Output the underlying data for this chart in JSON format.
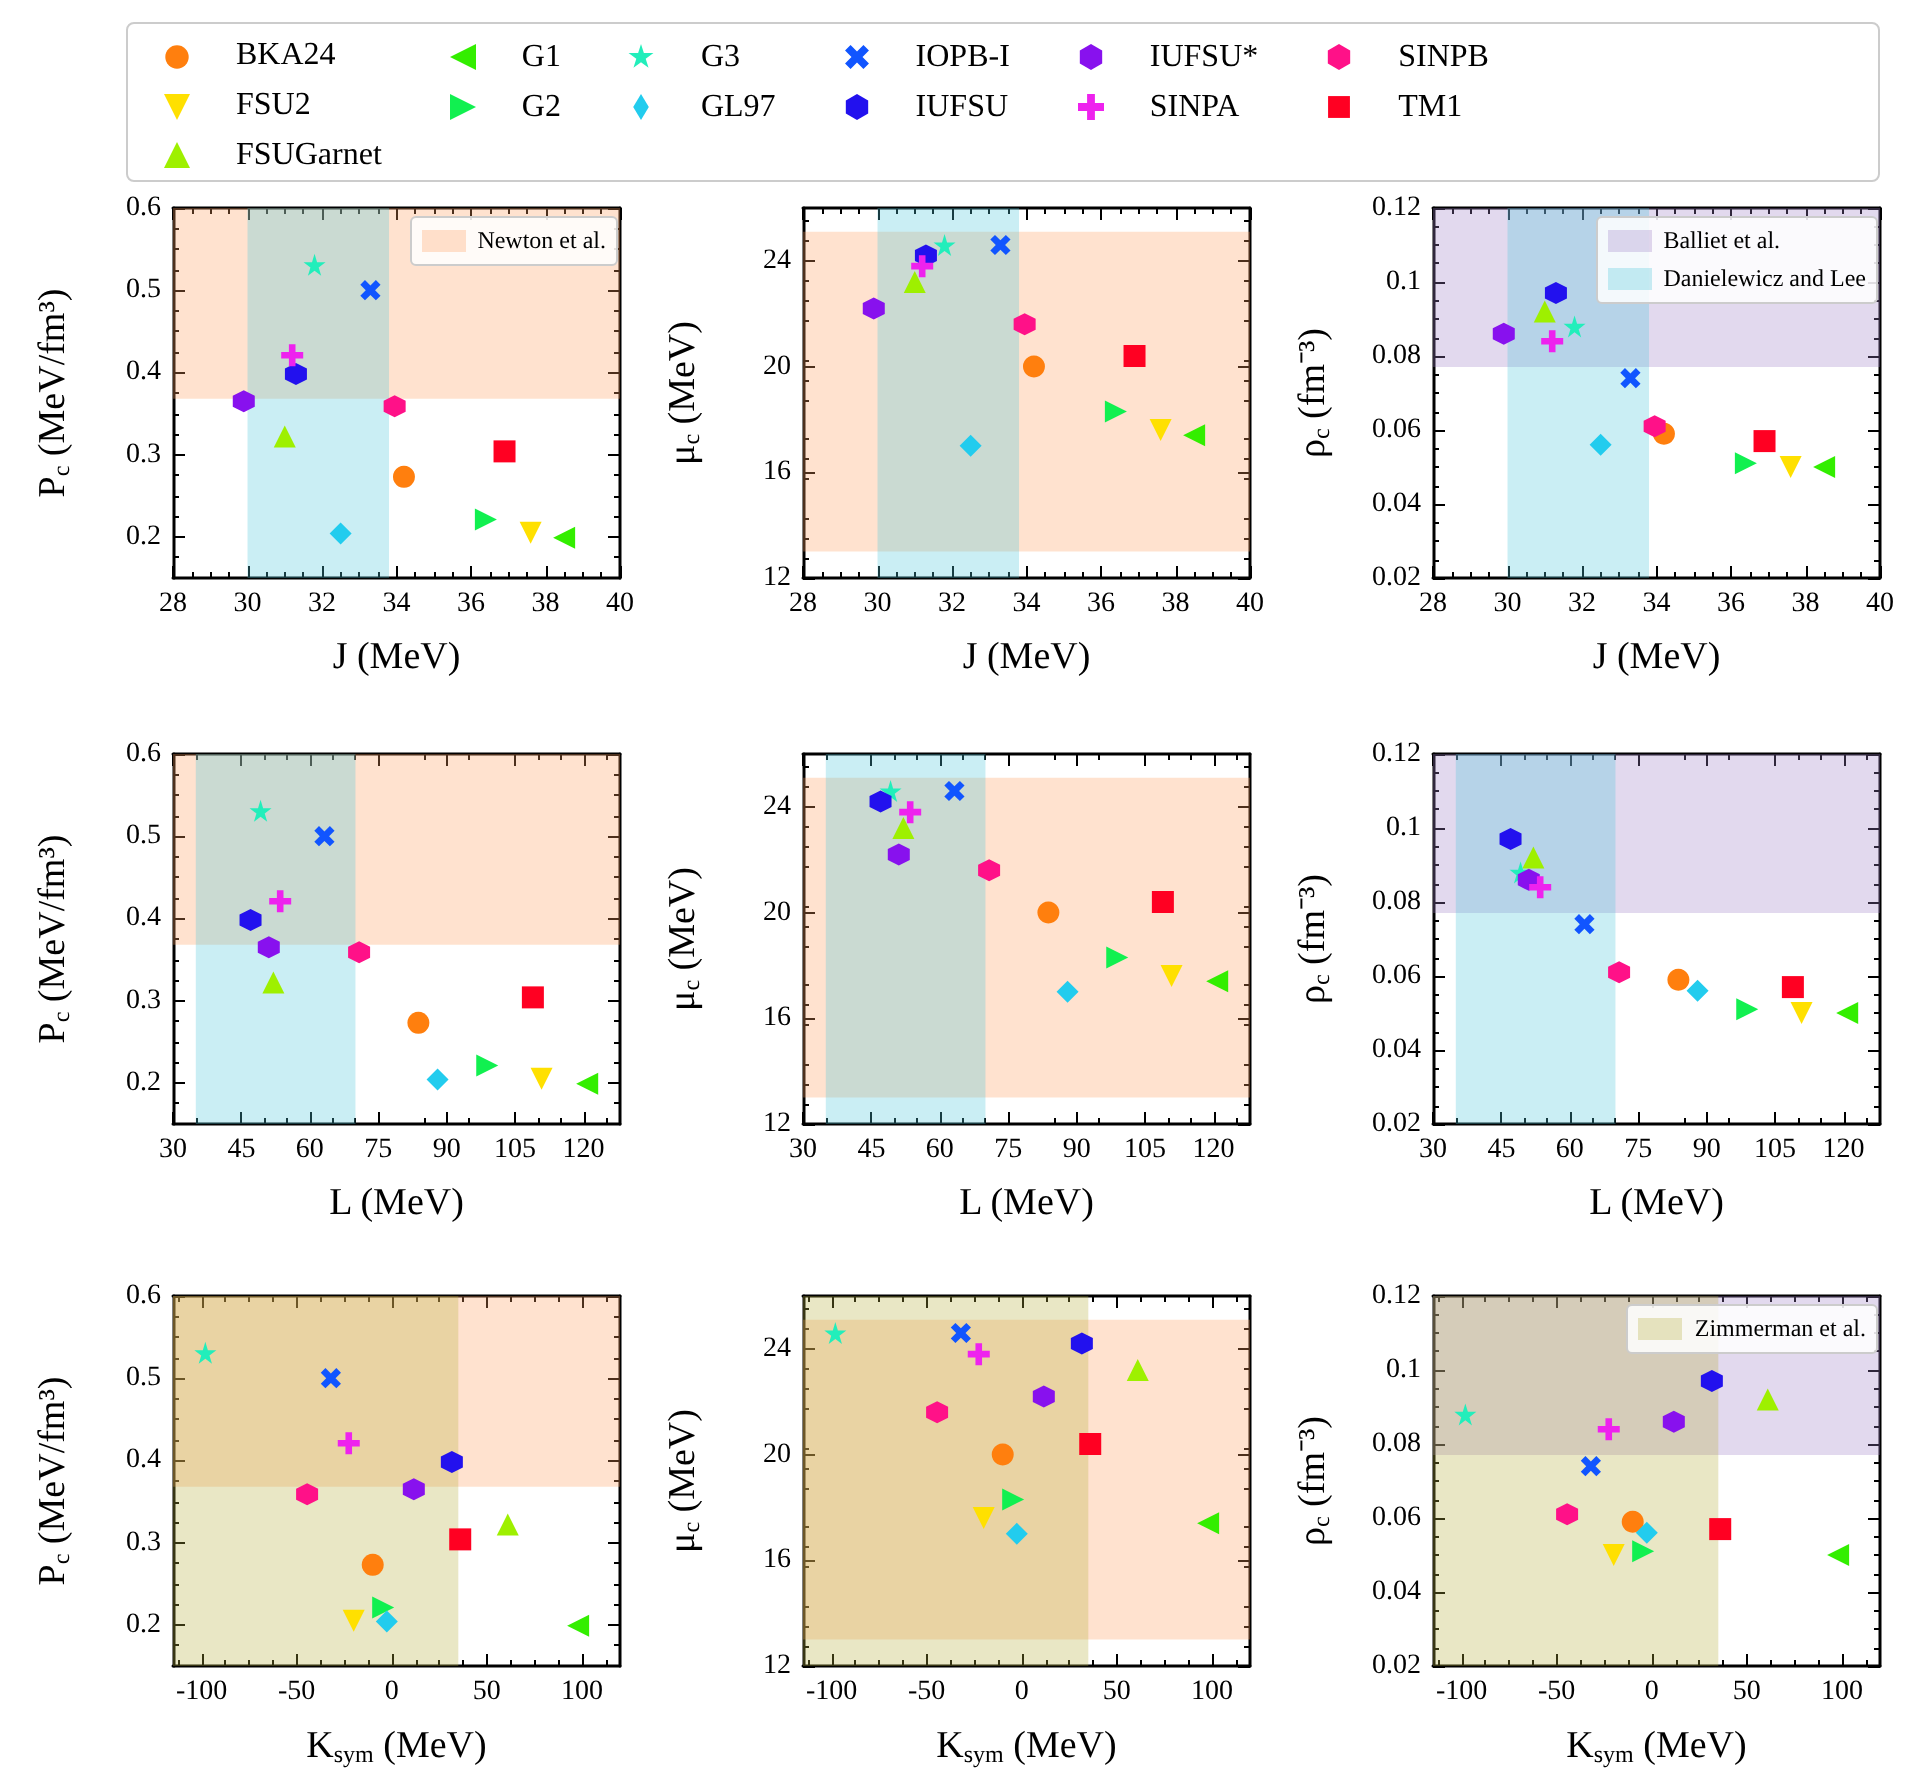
{
  "chart_data": [
    {
      "type": "scatter",
      "xlabel": "J (MeV)",
      "ylabel": "P$_{c}$ (MeV/fm³)",
      "xlim": [
        28,
        40
      ],
      "xticks": [
        28,
        30,
        32,
        34,
        36,
        38,
        40
      ],
      "ylim": [
        0.15,
        0.6
      ],
      "yticks": [
        0.2,
        0.3,
        0.4,
        0.5,
        0.6
      ],
      "legend": "top",
      "grid": false,
      "bands": [
        {
          "axis": "y",
          "from": 0.368,
          "to": 0.6,
          "label": "Newton et al.",
          "color": "#ffa060"
        },
        {
          "axis": "x",
          "from": 30,
          "to": 33.8,
          "color": "#4fc8dc"
        }
      ],
      "series": [
        {
          "name": "BKA24",
          "color": "#ff7f0e",
          "marker": "circle",
          "x": [
            34.2
          ],
          "values": [
            0.273
          ]
        },
        {
          "name": "FSU2",
          "color": "#ffe000",
          "marker": "triangle-down",
          "x": [
            37.6
          ],
          "values": [
            0.205
          ]
        },
        {
          "name": "FSUGarnet",
          "color": "#9ef000",
          "marker": "triangle",
          "x": [
            31.0
          ],
          "values": [
            0.322
          ]
        },
        {
          "name": "G1",
          "color": "#33ee00",
          "marker": "triangle-left",
          "x": [
            38.5
          ],
          "values": [
            0.199
          ]
        },
        {
          "name": "G2",
          "color": "#11f050",
          "marker": "triangle-right",
          "x": [
            36.4
          ],
          "values": [
            0.221
          ]
        },
        {
          "name": "G3",
          "color": "#22eebb",
          "marker": "star",
          "x": [
            31.8
          ],
          "values": [
            0.531
          ]
        },
        {
          "name": "GL97",
          "color": "#22ccee",
          "marker": "diamond",
          "x": [
            32.5
          ],
          "values": [
            0.204
          ]
        },
        {
          "name": "IOPB-I",
          "color": "#1155ff",
          "marker": "cross",
          "x": [
            33.3
          ],
          "values": [
            0.5
          ]
        },
        {
          "name": "IUFSU",
          "color": "#2211ee",
          "x": [
            31.3
          ],
          "values": [
            0.398
          ]
        },
        {
          "name": "IUFSU*",
          "color": "#8811ee",
          "x": [
            29.9
          ],
          "values": [
            0.365
          ]
        },
        {
          "name": "SINPA",
          "color": "#ee22ee",
          "marker": "plus",
          "x": [
            31.2
          ],
          "values": [
            0.421
          ]
        },
        {
          "name": "SINPB",
          "color": "#ff1188",
          "x": [
            33.95
          ],
          "values": [
            0.359
          ]
        },
        {
          "name": "TM1",
          "color": "#ff0022",
          "marker": "square",
          "x": [
            36.9
          ],
          "values": [
            0.304
          ]
        }
      ]
    },
    {
      "type": "scatter",
      "xlabel": "J (MeV)",
      "ylabel": "μ$_{c}$ (MeV)",
      "xlim": [
        28,
        40
      ],
      "xticks": [
        28,
        30,
        32,
        34,
        36,
        38,
        40
      ],
      "ylim": [
        12,
        26
      ],
      "yticks": [
        12,
        16,
        20,
        24
      ],
      "grid": false,
      "bands": [
        {
          "axis": "y",
          "from": 13,
          "to": 25.1,
          "color": "#ffa060"
        },
        {
          "axis": "x",
          "from": 30,
          "to": 33.8,
          "color": "#4fc8dc"
        }
      ],
      "series": [
        {
          "color": "#ff7f0e",
          "marker": "circle",
          "x": [
            34.2
          ],
          "values": [
            20.0
          ]
        },
        {
          "color": "#ffe000",
          "marker": "triangle-down",
          "x": [
            37.6
          ],
          "values": [
            17.6
          ]
        },
        {
          "color": "#9ef000",
          "marker": "triangle",
          "x": [
            31.0
          ],
          "values": [
            23.2
          ]
        },
        {
          "color": "#33ee00",
          "marker": "triangle-left",
          "x": [
            38.5
          ],
          "values": [
            17.4
          ]
        },
        {
          "color": "#11f050",
          "marker": "triangle-right",
          "x": [
            36.4
          ],
          "values": [
            18.3
          ]
        },
        {
          "color": "#22eebb",
          "marker": "star",
          "x": [
            31.8
          ],
          "values": [
            24.6
          ]
        },
        {
          "color": "#22ccee",
          "marker": "diamond",
          "x": [
            32.5
          ],
          "values": [
            17.0
          ]
        },
        {
          "color": "#1155ff",
          "marker": "cross",
          "x": [
            33.3
          ],
          "values": [
            24.6
          ]
        },
        {
          "color": "#2211ee",
          "x": [
            31.3
          ],
          "values": [
            24.2
          ]
        },
        {
          "color": "#8811ee",
          "x": [
            29.9
          ],
          "values": [
            22.2
          ]
        },
        {
          "color": "#ee22ee",
          "marker": "plus",
          "x": [
            31.2
          ],
          "values": [
            23.8
          ]
        },
        {
          "color": "#ff1188",
          "x": [
            33.95
          ],
          "values": [
            21.6
          ]
        },
        {
          "color": "#ff0022",
          "marker": "square",
          "x": [
            36.9
          ],
          "values": [
            20.4
          ]
        }
      ]
    },
    {
      "type": "scatter",
      "xlabel": "J (MeV)",
      "ylabel": "ρ$_{c}$ (fm⁻³)",
      "xlim": [
        28,
        40
      ],
      "xticks": [
        28,
        30,
        32,
        34,
        36,
        38,
        40
      ],
      "ylim": [
        0.02,
        0.12
      ],
      "yticks": [
        0.02,
        0.04,
        0.06,
        0.08,
        0.1,
        0.12
      ],
      "legend": "top right",
      "grid": false,
      "bands": [
        {
          "axis": "y",
          "from": 0.077,
          "to": 0.12,
          "label": "Balliet et al.",
          "color": "#9e80c8"
        },
        {
          "axis": "x",
          "from": 30,
          "to": 33.8,
          "label": "Danielewicz and Lee",
          "color": "#4fc8dc"
        }
      ],
      "series": [
        {
          "color": "#ff7f0e",
          "marker": "circle",
          "x": [
            34.2
          ],
          "values": [
            0.059
          ]
        },
        {
          "color": "#ffe000",
          "marker": "triangle-down",
          "x": [
            37.6
          ],
          "values": [
            0.05
          ]
        },
        {
          "color": "#9ef000",
          "marker": "triangle",
          "x": [
            31.0
          ],
          "values": [
            0.092
          ]
        },
        {
          "color": "#33ee00",
          "marker": "triangle-left",
          "x": [
            38.5
          ],
          "values": [
            0.05
          ]
        },
        {
          "color": "#11f050",
          "marker": "triangle-right",
          "x": [
            36.4
          ],
          "values": [
            0.051
          ]
        },
        {
          "color": "#22eebb",
          "marker": "star",
          "x": [
            31.8
          ],
          "values": [
            0.088
          ]
        },
        {
          "color": "#22ccee",
          "marker": "diamond",
          "x": [
            32.5
          ],
          "values": [
            0.056
          ]
        },
        {
          "color": "#1155ff",
          "marker": "cross",
          "x": [
            33.3
          ],
          "values": [
            0.074
          ]
        },
        {
          "color": "#2211ee",
          "x": [
            31.3
          ],
          "values": [
            0.097
          ]
        },
        {
          "color": "#8811ee",
          "x": [
            29.9
          ],
          "values": [
            0.086
          ]
        },
        {
          "color": "#ee22ee",
          "marker": "plus",
          "x": [
            31.2
          ],
          "values": [
            0.084
          ]
        },
        {
          "color": "#ff1188",
          "x": [
            33.95
          ],
          "values": [
            0.061
          ]
        },
        {
          "color": "#ff0022",
          "marker": "square",
          "x": [
            36.9
          ],
          "values": [
            0.057
          ]
        }
      ]
    },
    {
      "type": "scatter",
      "xlabel": "L (MeV)",
      "ylabel": "P$_{c}$ (MeV/fm³)",
      "xlim": [
        30,
        128
      ],
      "xticks": [
        30,
        45,
        60,
        75,
        90,
        105,
        120
      ],
      "ylim": [
        0.15,
        0.6
      ],
      "yticks": [
        0.2,
        0.3,
        0.4,
        0.5,
        0.6
      ],
      "grid": false,
      "bands": [
        {
          "axis": "y",
          "from": 0.368,
          "to": 0.6,
          "color": "#ffa060"
        },
        {
          "axis": "x",
          "from": 35,
          "to": 70,
          "color": "#4fc8dc"
        }
      ],
      "series": [
        {
          "color": "#ff7f0e",
          "marker": "circle",
          "x": [
            83.8
          ],
          "values": [
            0.273
          ]
        },
        {
          "color": "#ffe000",
          "marker": "triangle-down",
          "x": [
            110.8
          ],
          "values": [
            0.205
          ]
        },
        {
          "color": "#9ef000",
          "marker": "triangle",
          "x": [
            52
          ],
          "values": [
            0.322
          ]
        },
        {
          "color": "#33ee00",
          "marker": "triangle-left",
          "x": [
            120.8
          ],
          "values": [
            0.199
          ]
        },
        {
          "color": "#11f050",
          "marker": "triangle-right",
          "x": [
            98.9
          ],
          "values": [
            0.221
          ]
        },
        {
          "color": "#22eebb",
          "marker": "star",
          "x": [
            49.2
          ],
          "values": [
            0.531
          ]
        },
        {
          "color": "#22ccee",
          "marker": "diamond",
          "x": [
            88
          ],
          "values": [
            0.204
          ]
        },
        {
          "color": "#1155ff",
          "marker": "cross",
          "x": [
            63.2
          ],
          "values": [
            0.5
          ]
        },
        {
          "color": "#2211ee",
          "x": [
            47
          ],
          "values": [
            0.398
          ]
        },
        {
          "color": "#8811ee",
          "x": [
            51
          ],
          "values": [
            0.365
          ]
        },
        {
          "color": "#ee22ee",
          "marker": "plus",
          "x": [
            53.5
          ],
          "values": [
            0.421
          ]
        },
        {
          "color": "#ff1188",
          "x": [
            70.8
          ],
          "values": [
            0.359
          ]
        },
        {
          "color": "#ff0022",
          "marker": "square",
          "x": [
            108.9
          ],
          "values": [
            0.304
          ]
        }
      ]
    },
    {
      "type": "scatter",
      "xlabel": "L (MeV)",
      "ylabel": "μ$_{c}$ (MeV)",
      "xlim": [
        30,
        128
      ],
      "xticks": [
        30,
        45,
        60,
        75,
        90,
        105,
        120
      ],
      "ylim": [
        12,
        26
      ],
      "yticks": [
        12,
        16,
        20,
        24
      ],
      "grid": false,
      "bands": [
        {
          "axis": "y",
          "from": 13,
          "to": 25.1,
          "color": "#ffa060"
        },
        {
          "axis": "x",
          "from": 35,
          "to": 70,
          "color": "#4fc8dc"
        }
      ],
      "series": [
        {
          "color": "#ff7f0e",
          "marker": "circle",
          "x": [
            83.8
          ],
          "values": [
            20.0
          ]
        },
        {
          "color": "#ffe000",
          "marker": "triangle-down",
          "x": [
            110.8
          ],
          "values": [
            17.6
          ]
        },
        {
          "color": "#9ef000",
          "marker": "triangle",
          "x": [
            52
          ],
          "values": [
            23.2
          ]
        },
        {
          "color": "#33ee00",
          "marker": "triangle-left",
          "x": [
            120.8
          ],
          "values": [
            17.4
          ]
        },
        {
          "color": "#11f050",
          "marker": "triangle-right",
          "x": [
            98.9
          ],
          "values": [
            18.3
          ]
        },
        {
          "color": "#22eebb",
          "marker": "star",
          "x": [
            49.2
          ],
          "values": [
            24.6
          ]
        },
        {
          "color": "#22ccee",
          "marker": "diamond",
          "x": [
            88
          ],
          "values": [
            17.0
          ]
        },
        {
          "color": "#1155ff",
          "marker": "cross",
          "x": [
            63.2
          ],
          "values": [
            24.6
          ]
        },
        {
          "color": "#2211ee",
          "x": [
            47
          ],
          "values": [
            24.2
          ]
        },
        {
          "color": "#8811ee",
          "x": [
            51
          ],
          "values": [
            22.2
          ]
        },
        {
          "color": "#ee22ee",
          "marker": "plus",
          "x": [
            53.5
          ],
          "values": [
            23.8
          ]
        },
        {
          "color": "#ff1188",
          "x": [
            70.8
          ],
          "values": [
            21.6
          ]
        },
        {
          "color": "#ff0022",
          "marker": "square",
          "x": [
            108.9
          ],
          "values": [
            20.4
          ]
        }
      ]
    },
    {
      "type": "scatter",
      "xlabel": "L (MeV)",
      "ylabel": "ρ$_{c}$ (fm⁻³)",
      "xlim": [
        30,
        128
      ],
      "xticks": [
        30,
        45,
        60,
        75,
        90,
        105,
        120
      ],
      "ylim": [
        0.02,
        0.12
      ],
      "yticks": [
        0.02,
        0.04,
        0.06,
        0.08,
        0.1,
        0.12
      ],
      "grid": false,
      "bands": [
        {
          "axis": "y",
          "from": 0.077,
          "to": 0.12,
          "color": "#9e80c8"
        },
        {
          "axis": "x",
          "from": 35,
          "to": 70,
          "color": "#4fc8dc"
        }
      ],
      "series": [
        {
          "color": "#ff7f0e",
          "marker": "circle",
          "x": [
            83.8
          ],
          "values": [
            0.059
          ]
        },
        {
          "color": "#ffe000",
          "marker": "triangle-down",
          "x": [
            110.8
          ],
          "values": [
            0.05
          ]
        },
        {
          "color": "#9ef000",
          "marker": "triangle",
          "x": [
            52
          ],
          "values": [
            0.092
          ]
        },
        {
          "color": "#33ee00",
          "marker": "triangle-left",
          "x": [
            120.8
          ],
          "values": [
            0.05
          ]
        },
        {
          "color": "#11f050",
          "marker": "triangle-right",
          "x": [
            98.9
          ],
          "values": [
            0.051
          ]
        },
        {
          "color": "#22eebb",
          "marker": "star",
          "x": [
            49.2
          ],
          "values": [
            0.088
          ]
        },
        {
          "color": "#22ccee",
          "marker": "diamond",
          "x": [
            88
          ],
          "values": [
            0.056
          ]
        },
        {
          "color": "#1155ff",
          "marker": "cross",
          "x": [
            63.2
          ],
          "values": [
            0.074
          ]
        },
        {
          "color": "#2211ee",
          "x": [
            47
          ],
          "values": [
            0.097
          ]
        },
        {
          "color": "#8811ee",
          "x": [
            51
          ],
          "values": [
            0.086
          ]
        },
        {
          "color": "#ee22ee",
          "marker": "plus",
          "x": [
            53.5
          ],
          "values": [
            0.084
          ]
        },
        {
          "color": "#ff1188",
          "x": [
            70.8
          ],
          "values": [
            0.061
          ]
        },
        {
          "color": "#ff0022",
          "marker": "square",
          "x": [
            108.9
          ],
          "values": [
            0.057
          ]
        }
      ]
    },
    {
      "type": "scatter",
      "xlabel": "K$_{sym}$ (MeV)",
      "ylabel": "P$_{c}$ (MeV/fm³)",
      "xlim": [
        -115,
        120
      ],
      "xticks": [
        -100,
        -50,
        0,
        50,
        100
      ],
      "ylim": [
        0.15,
        0.6
      ],
      "yticks": [
        0.2,
        0.3,
        0.4,
        0.5,
        0.6
      ],
      "grid": false,
      "bands": [
        {
          "axis": "y",
          "from": 0.368,
          "to": 0.6,
          "color": "#ffa060"
        },
        {
          "axis": "x",
          "from": -115,
          "to": 35,
          "color": "#b5b040"
        }
      ],
      "series": [
        {
          "color": "#ff7f0e",
          "marker": "circle",
          "x": [
            -10
          ],
          "values": [
            0.273
          ]
        },
        {
          "color": "#ffe000",
          "marker": "triangle-down",
          "x": [
            -20
          ],
          "values": [
            0.205
          ]
        },
        {
          "color": "#9ef000",
          "marker": "triangle",
          "x": [
            61
          ],
          "values": [
            0.322
          ]
        },
        {
          "color": "#33ee00",
          "marker": "triangle-left",
          "x": [
            98
          ],
          "values": [
            0.199
          ]
        },
        {
          "color": "#11f050",
          "marker": "triangle-right",
          "x": [
            -4.5
          ],
          "values": [
            0.221
          ]
        },
        {
          "color": "#22eebb",
          "marker": "star",
          "x": [
            -98
          ],
          "values": [
            0.531
          ]
        },
        {
          "color": "#22ccee",
          "marker": "diamond",
          "x": [
            -2.6
          ],
          "values": [
            0.204
          ]
        },
        {
          "color": "#1155ff",
          "marker": "cross",
          "x": [
            -32
          ],
          "values": [
            0.5
          ]
        },
        {
          "color": "#2211ee",
          "x": [
            31.6
          ],
          "values": [
            0.398
          ]
        },
        {
          "color": "#8811ee",
          "x": [
            11.6
          ],
          "values": [
            0.365
          ]
        },
        {
          "color": "#ee22ee",
          "marker": "plus",
          "x": [
            -22.6
          ],
          "values": [
            0.421
          ]
        },
        {
          "color": "#ff1188",
          "x": [
            -44.5
          ],
          "values": [
            0.359
          ]
        },
        {
          "color": "#ff0022",
          "marker": "square",
          "x": [
            36
          ],
          "values": [
            0.304
          ]
        }
      ]
    },
    {
      "type": "scatter",
      "xlabel": "K$_{sym}$ (MeV)",
      "ylabel": "μ$_{c}$ (MeV)",
      "xlim": [
        -115,
        120
      ],
      "xticks": [
        -100,
        -50,
        0,
        50,
        100
      ],
      "ylim": [
        12,
        26
      ],
      "yticks": [
        12,
        16,
        20,
        24
      ],
      "grid": false,
      "bands": [
        {
          "axis": "y",
          "from": 13,
          "to": 25.1,
          "color": "#ffa060"
        },
        {
          "axis": "x",
          "from": -115,
          "to": 35,
          "color": "#b5b040"
        }
      ],
      "series": [
        {
          "color": "#ff7f0e",
          "marker": "circle",
          "x": [
            -10
          ],
          "values": [
            20.0
          ]
        },
        {
          "color": "#ffe000",
          "marker": "triangle-down",
          "x": [
            -20
          ],
          "values": [
            17.6
          ]
        },
        {
          "color": "#9ef000",
          "marker": "triangle",
          "x": [
            61
          ],
          "values": [
            23.2
          ]
        },
        {
          "color": "#33ee00",
          "marker": "triangle-left",
          "x": [
            98
          ],
          "values": [
            17.4
          ]
        },
        {
          "color": "#11f050",
          "marker": "triangle-right",
          "x": [
            -4.5
          ],
          "values": [
            18.3
          ]
        },
        {
          "color": "#22eebb",
          "marker": "star",
          "x": [
            -98
          ],
          "values": [
            24.6
          ]
        },
        {
          "color": "#22ccee",
          "marker": "diamond",
          "x": [
            -2.6
          ],
          "values": [
            17.0
          ]
        },
        {
          "color": "#1155ff",
          "marker": "cross",
          "x": [
            -32
          ],
          "values": [
            24.6
          ]
        },
        {
          "color": "#2211ee",
          "x": [
            31.6
          ],
          "values": [
            24.2
          ]
        },
        {
          "color": "#8811ee",
          "x": [
            11.6
          ],
          "values": [
            22.2
          ]
        },
        {
          "color": "#ee22ee",
          "marker": "plus",
          "x": [
            -22.6
          ],
          "values": [
            23.8
          ]
        },
        {
          "color": "#ff1188",
          "x": [
            -44.5
          ],
          "values": [
            21.6
          ]
        },
        {
          "color": "#ff0022",
          "marker": "square",
          "x": [
            36
          ],
          "values": [
            20.4
          ]
        }
      ]
    },
    {
      "type": "scatter",
      "xlabel": "K$_{sym}$ (MeV)",
      "ylabel": "ρ$_{c}$ (fm⁻³)",
      "xlim": [
        -115,
        120
      ],
      "xticks": [
        -100,
        -50,
        0,
        50,
        100
      ],
      "ylim": [
        0.02,
        0.12
      ],
      "yticks": [
        0.02,
        0.04,
        0.06,
        0.08,
        0.1,
        0.12
      ],
      "legend": "top right",
      "grid": false,
      "bands": [
        {
          "axis": "y",
          "from": 0.077,
          "to": 0.12,
          "color": "#9e80c8"
        },
        {
          "axis": "x",
          "from": -115,
          "to": 35,
          "label": "Zimmerman et al.",
          "color": "#b5b040"
        }
      ],
      "series": [
        {
          "color": "#ff7f0e",
          "marker": "circle",
          "x": [
            -10
          ],
          "values": [
            0.059
          ]
        },
        {
          "color": "#ffe000",
          "marker": "triangle-down",
          "x": [
            -20
          ],
          "values": [
            0.05
          ]
        },
        {
          "color": "#9ef000",
          "marker": "triangle",
          "x": [
            61
          ],
          "values": [
            0.092
          ]
        },
        {
          "color": "#33ee00",
          "marker": "triangle-left",
          "x": [
            98
          ],
          "values": [
            0.05
          ]
        },
        {
          "color": "#11f050",
          "marker": "triangle-right",
          "x": [
            -4.5
          ],
          "values": [
            0.051
          ]
        },
        {
          "color": "#22eebb",
          "marker": "star",
          "x": [
            -98
          ],
          "values": [
            0.088
          ]
        },
        {
          "color": "#22ccee",
          "marker": "diamond",
          "x": [
            -2.6
          ],
          "values": [
            0.056
          ]
        },
        {
          "color": "#1155ff",
          "marker": "cross",
          "x": [
            -32
          ],
          "values": [
            0.074
          ]
        },
        {
          "color": "#2211ee",
          "x": [
            31.6
          ],
          "values": [
            0.097
          ]
        },
        {
          "color": "#8811ee",
          "x": [
            11.6
          ],
          "values": [
            0.086
          ]
        },
        {
          "color": "#ee22ee",
          "marker": "plus",
          "x": [
            -22.6
          ],
          "values": [
            0.084
          ]
        },
        {
          "color": "#ff1188",
          "x": [
            -44.5
          ],
          "values": [
            0.061
          ]
        },
        {
          "color": "#ff0022",
          "marker": "square",
          "x": [
            36
          ],
          "values": [
            0.057
          ]
        }
      ]
    }
  ]
}
